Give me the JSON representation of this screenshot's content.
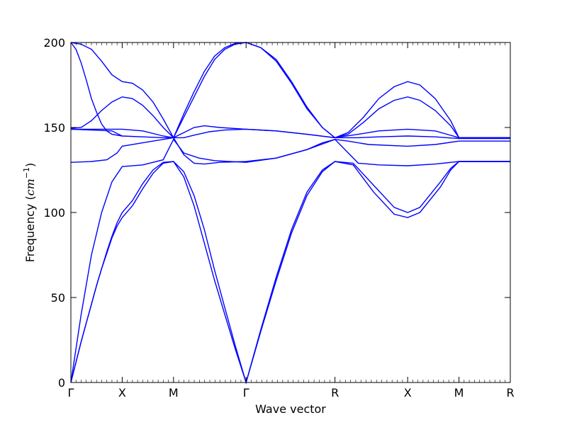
{
  "chart_data": {
    "type": "line",
    "title": "",
    "xlabel": "Wave vector",
    "ylabel_text": "Frequency (",
    "ylabel_math": "cm",
    "ylabel_sup": "−1",
    "ylabel_close": ")",
    "ylim": [
      0,
      200
    ],
    "yticks": [
      0,
      50,
      100,
      150,
      200
    ],
    "ytick_labels": [
      "0",
      "50",
      "100",
      "150",
      "200"
    ],
    "grid": false,
    "legend": "none",
    "line_color": "#0000ff",
    "xticks": [
      {
        "label": "Γ",
        "x": 0
      },
      {
        "label": "X",
        "x": 0.5
      },
      {
        "label": "M",
        "x": 1.0
      },
      {
        "label": "Γ",
        "x": 1.707
      },
      {
        "label": "R",
        "x": 2.573
      },
      {
        "label": "X",
        "x": 3.281
      },
      {
        "label": "M",
        "x": 3.781
      },
      {
        "label": "R",
        "x": 4.281
      }
    ],
    "xlim": [
      0,
      4.281
    ],
    "series": [
      {
        "points": [
          [
            0,
            0
          ],
          [
            0.05,
            12
          ],
          [
            0.1,
            24
          ],
          [
            0.15,
            35
          ],
          [
            0.2,
            46
          ],
          [
            0.25,
            57
          ],
          [
            0.3,
            67
          ],
          [
            0.35,
            76
          ],
          [
            0.4,
            85
          ],
          [
            0.45,
            92
          ],
          [
            0.5,
            97
          ],
          [
            0.6,
            104
          ],
          [
            0.7,
            114
          ],
          [
            0.8,
            123
          ],
          [
            0.9,
            129
          ],
          [
            1.0,
            130
          ],
          [
            1.1,
            124
          ],
          [
            1.2,
            110
          ],
          [
            1.3,
            90
          ],
          [
            1.4,
            66
          ],
          [
            1.5,
            44
          ],
          [
            1.6,
            22
          ],
          [
            1.707,
            0
          ],
          [
            1.85,
            30
          ],
          [
            2.0,
            60
          ],
          [
            2.15,
            88
          ],
          [
            2.3,
            110
          ],
          [
            2.45,
            124
          ],
          [
            2.573,
            130
          ],
          [
            2.75,
            128
          ],
          [
            2.95,
            112
          ],
          [
            3.15,
            99
          ],
          [
            3.281,
            97
          ],
          [
            3.4,
            100
          ],
          [
            3.6,
            115
          ],
          [
            3.7,
            125
          ],
          [
            3.781,
            130
          ],
          [
            4.281,
            130
          ]
        ]
      },
      {
        "points": [
          [
            0,
            0
          ],
          [
            0.05,
            12
          ],
          [
            0.1,
            24
          ],
          [
            0.15,
            35
          ],
          [
            0.2,
            46
          ],
          [
            0.25,
            57
          ],
          [
            0.3,
            67
          ],
          [
            0.35,
            77
          ],
          [
            0.4,
            86
          ],
          [
            0.45,
            94
          ],
          [
            0.5,
            100
          ],
          [
            0.6,
            107
          ],
          [
            0.7,
            117
          ],
          [
            0.8,
            125
          ],
          [
            0.9,
            129.5
          ],
          [
            1.0,
            130
          ],
          [
            1.1,
            121
          ],
          [
            1.2,
            104
          ],
          [
            1.3,
            82
          ],
          [
            1.4,
            60
          ],
          [
            1.5,
            40
          ],
          [
            1.6,
            20
          ],
          [
            1.707,
            0
          ],
          [
            1.85,
            31
          ],
          [
            2.0,
            62
          ],
          [
            2.15,
            90
          ],
          [
            2.3,
            112
          ],
          [
            2.45,
            125
          ],
          [
            2.573,
            130
          ],
          [
            2.75,
            129
          ],
          [
            2.95,
            116
          ],
          [
            3.15,
            103
          ],
          [
            3.281,
            100
          ],
          [
            3.4,
            103
          ],
          [
            3.6,
            118
          ],
          [
            3.7,
            126
          ],
          [
            3.781,
            130
          ],
          [
            4.281,
            130
          ]
        ]
      },
      {
        "points": [
          [
            0,
            0
          ],
          [
            0.1,
            40
          ],
          [
            0.2,
            75
          ],
          [
            0.3,
            100
          ],
          [
            0.4,
            118
          ],
          [
            0.5,
            127
          ],
          [
            0.7,
            128
          ],
          [
            0.9,
            131
          ],
          [
            1.0,
            143
          ],
          [
            1.1,
            135
          ],
          [
            1.25,
            132
          ],
          [
            1.4,
            130.5
          ],
          [
            1.55,
            130
          ],
          [
            1.707,
            129.5
          ],
          [
            2.0,
            132
          ],
          [
            2.3,
            137
          ],
          [
            2.573,
            143
          ],
          [
            2.8,
            129
          ],
          [
            3.0,
            128
          ],
          [
            3.281,
            127.5
          ],
          [
            3.55,
            128.5
          ],
          [
            3.781,
            130
          ],
          [
            4.281,
            130
          ]
        ]
      },
      {
        "points": [
          [
            0,
            129.5
          ],
          [
            0.2,
            130
          ],
          [
            0.35,
            131
          ],
          [
            0.45,
            135
          ],
          [
            0.5,
            139
          ],
          [
            0.7,
            141
          ],
          [
            0.9,
            143
          ],
          [
            1.0,
            144
          ],
          [
            1.1,
            134
          ],
          [
            1.2,
            129
          ],
          [
            1.3,
            128.5
          ],
          [
            1.45,
            129.5
          ],
          [
            1.707,
            130
          ],
          [
            2.0,
            132
          ],
          [
            2.3,
            137
          ],
          [
            2.45,
            141
          ],
          [
            2.573,
            143
          ],
          [
            2.7,
            142
          ],
          [
            2.9,
            140
          ],
          [
            3.281,
            139
          ],
          [
            3.55,
            140
          ],
          [
            3.781,
            142
          ],
          [
            4.281,
            142
          ]
        ]
      },
      {
        "points": [
          [
            0,
            149
          ],
          [
            0.2,
            148.5
          ],
          [
            0.4,
            148
          ],
          [
            0.5,
            145
          ],
          [
            0.7,
            144.5
          ],
          [
            0.9,
            144
          ],
          [
            1.0,
            144
          ],
          [
            1.1,
            144
          ],
          [
            1.2,
            145.5
          ],
          [
            1.35,
            147.5
          ],
          [
            1.5,
            148.5
          ],
          [
            1.707,
            149
          ],
          [
            2.0,
            148
          ],
          [
            2.3,
            146
          ],
          [
            2.573,
            144
          ],
          [
            2.8,
            144
          ],
          [
            3.0,
            144.5
          ],
          [
            3.281,
            145
          ],
          [
            3.55,
            144.5
          ],
          [
            3.781,
            143.5
          ],
          [
            4.281,
            143.5
          ]
        ]
      },
      {
        "points": [
          [
            0,
            149
          ],
          [
            0.2,
            149
          ],
          [
            0.4,
            149
          ],
          [
            0.5,
            149
          ],
          [
            0.7,
            148
          ],
          [
            0.9,
            145
          ],
          [
            1.0,
            144
          ],
          [
            1.1,
            147
          ],
          [
            1.2,
            150
          ],
          [
            1.3,
            151
          ],
          [
            1.45,
            150
          ],
          [
            1.707,
            149
          ],
          [
            2.0,
            148
          ],
          [
            2.3,
            146
          ],
          [
            2.573,
            144
          ],
          [
            2.8,
            146
          ],
          [
            3.0,
            148
          ],
          [
            3.281,
            149
          ],
          [
            3.55,
            148
          ],
          [
            3.781,
            144
          ],
          [
            4.281,
            144
          ]
        ]
      },
      {
        "points": [
          [
            0,
            149.5
          ],
          [
            0.1,
            150
          ],
          [
            0.2,
            154
          ],
          [
            0.3,
            160
          ],
          [
            0.4,
            165
          ],
          [
            0.5,
            168
          ],
          [
            0.6,
            167
          ],
          [
            0.7,
            163
          ],
          [
            0.8,
            157
          ],
          [
            0.9,
            150
          ],
          [
            1.0,
            144
          ],
          [
            1.1,
            156
          ],
          [
            1.2,
            168
          ],
          [
            1.3,
            180
          ],
          [
            1.4,
            190
          ],
          [
            1.5,
            196
          ],
          [
            1.6,
            199
          ],
          [
            1.707,
            200
          ],
          [
            1.85,
            197
          ],
          [
            2.0,
            189
          ],
          [
            2.15,
            176
          ],
          [
            2.3,
            161
          ],
          [
            2.45,
            150
          ],
          [
            2.573,
            144
          ],
          [
            2.7,
            146
          ],
          [
            2.85,
            153
          ],
          [
            3.0,
            161
          ],
          [
            3.15,
            166
          ],
          [
            3.281,
            168
          ],
          [
            3.4,
            166
          ],
          [
            3.55,
            160
          ],
          [
            3.7,
            151
          ],
          [
            3.781,
            144
          ],
          [
            4.281,
            144
          ]
        ]
      },
      {
        "points": [
          [
            0,
            200
          ],
          [
            0.1,
            199
          ],
          [
            0.2,
            196
          ],
          [
            0.3,
            189
          ],
          [
            0.4,
            181
          ],
          [
            0.5,
            177
          ],
          [
            0.6,
            176
          ],
          [
            0.7,
            172
          ],
          [
            0.8,
            165
          ],
          [
            0.9,
            155
          ],
          [
            1.0,
            144
          ],
          [
            1.1,
            158
          ],
          [
            1.2,
            171
          ],
          [
            1.3,
            183
          ],
          [
            1.4,
            192
          ],
          [
            1.5,
            197
          ],
          [
            1.6,
            199.5
          ],
          [
            1.707,
            200
          ],
          [
            1.85,
            197
          ],
          [
            2.0,
            190
          ],
          [
            2.15,
            177
          ],
          [
            2.3,
            162
          ],
          [
            2.45,
            150
          ],
          [
            2.573,
            144
          ],
          [
            2.7,
            147
          ],
          [
            2.85,
            156
          ],
          [
            3.0,
            167
          ],
          [
            3.15,
            174
          ],
          [
            3.281,
            177
          ],
          [
            3.4,
            175
          ],
          [
            3.55,
            167
          ],
          [
            3.7,
            154
          ],
          [
            3.781,
            144
          ],
          [
            4.281,
            144
          ]
        ]
      },
      {
        "points": [
          [
            0,
            200
          ],
          [
            0.05,
            196
          ],
          [
            0.1,
            188
          ],
          [
            0.15,
            178
          ],
          [
            0.2,
            167
          ],
          [
            0.25,
            159
          ],
          [
            0.3,
            152
          ],
          [
            0.35,
            148
          ],
          [
            0.4,
            146
          ],
          [
            0.5,
            145
          ]
        ]
      }
    ]
  }
}
